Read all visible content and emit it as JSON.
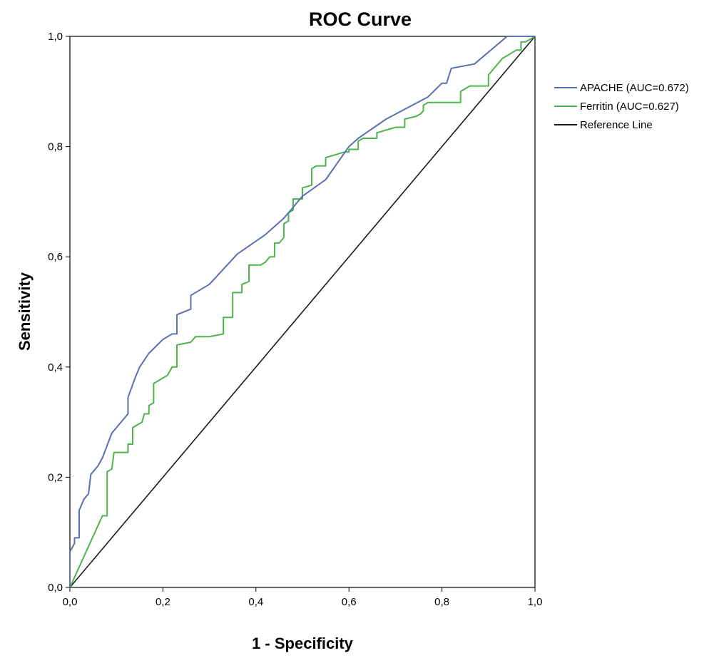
{
  "chart_data": {
    "type": "line",
    "title": "ROC Curve",
    "xlabel": "1 - Specificity",
    "ylabel": "Sensitivity",
    "xlim": [
      0,
      1
    ],
    "ylim": [
      0,
      1
    ],
    "xticks": [
      0,
      0.2,
      0.4,
      0.6,
      0.8,
      1.0
    ],
    "yticks": [
      0,
      0.2,
      0.4,
      0.6,
      0.8,
      1.0
    ],
    "xtick_labels": [
      "0,0",
      "0,2",
      "0,4",
      "0,6",
      "0,8",
      "1,0"
    ],
    "ytick_labels": [
      "0,0",
      "0,2",
      "0,4",
      "0,6",
      "0,8",
      "1,0"
    ],
    "grid": false,
    "legend_position": "right",
    "series": [
      {
        "name": "APACHE (AUC=0.672)",
        "color": "#5a6fb5",
        "points": [
          [
            0.0,
            0.0
          ],
          [
            0.0,
            0.065
          ],
          [
            0.01,
            0.08
          ],
          [
            0.01,
            0.09
          ],
          [
            0.02,
            0.09
          ],
          [
            0.02,
            0.14
          ],
          [
            0.03,
            0.16
          ],
          [
            0.04,
            0.17
          ],
          [
            0.045,
            0.205
          ],
          [
            0.06,
            0.22
          ],
          [
            0.07,
            0.235
          ],
          [
            0.09,
            0.28
          ],
          [
            0.11,
            0.3
          ],
          [
            0.125,
            0.315
          ],
          [
            0.125,
            0.345
          ],
          [
            0.14,
            0.38
          ],
          [
            0.15,
            0.4
          ],
          [
            0.17,
            0.425
          ],
          [
            0.2,
            0.45
          ],
          [
            0.22,
            0.46
          ],
          [
            0.23,
            0.46
          ],
          [
            0.23,
            0.495
          ],
          [
            0.26,
            0.505
          ],
          [
            0.26,
            0.53
          ],
          [
            0.3,
            0.55
          ],
          [
            0.36,
            0.605
          ],
          [
            0.42,
            0.64
          ],
          [
            0.46,
            0.67
          ],
          [
            0.5,
            0.71
          ],
          [
            0.55,
            0.74
          ],
          [
            0.6,
            0.8
          ],
          [
            0.62,
            0.815
          ],
          [
            0.68,
            0.85
          ],
          [
            0.77,
            0.89
          ],
          [
            0.8,
            0.915
          ],
          [
            0.81,
            0.915
          ],
          [
            0.82,
            0.942
          ],
          [
            0.87,
            0.95
          ],
          [
            0.94,
            1.0
          ],
          [
            1.0,
            1.0
          ]
        ]
      },
      {
        "name": "Ferritin (AUC=0.627)",
        "color": "#4cb44c",
        "points": [
          [
            0.0,
            0.0
          ],
          [
            0.07,
            0.13
          ],
          [
            0.08,
            0.13
          ],
          [
            0.08,
            0.21
          ],
          [
            0.09,
            0.215
          ],
          [
            0.095,
            0.245
          ],
          [
            0.125,
            0.245
          ],
          [
            0.125,
            0.26
          ],
          [
            0.135,
            0.26
          ],
          [
            0.135,
            0.29
          ],
          [
            0.145,
            0.295
          ],
          [
            0.155,
            0.3
          ],
          [
            0.16,
            0.315
          ],
          [
            0.17,
            0.315
          ],
          [
            0.17,
            0.33
          ],
          [
            0.18,
            0.335
          ],
          [
            0.18,
            0.37
          ],
          [
            0.19,
            0.375
          ],
          [
            0.2,
            0.38
          ],
          [
            0.21,
            0.385
          ],
          [
            0.22,
            0.4
          ],
          [
            0.23,
            0.4
          ],
          [
            0.23,
            0.44
          ],
          [
            0.26,
            0.445
          ],
          [
            0.27,
            0.455
          ],
          [
            0.3,
            0.455
          ],
          [
            0.33,
            0.46
          ],
          [
            0.33,
            0.49
          ],
          [
            0.35,
            0.49
          ],
          [
            0.35,
            0.535
          ],
          [
            0.37,
            0.535
          ],
          [
            0.37,
            0.55
          ],
          [
            0.385,
            0.555
          ],
          [
            0.385,
            0.585
          ],
          [
            0.41,
            0.585
          ],
          [
            0.42,
            0.59
          ],
          [
            0.43,
            0.6
          ],
          [
            0.44,
            0.6
          ],
          [
            0.44,
            0.625
          ],
          [
            0.45,
            0.625
          ],
          [
            0.46,
            0.635
          ],
          [
            0.46,
            0.66
          ],
          [
            0.47,
            0.665
          ],
          [
            0.47,
            0.68
          ],
          [
            0.48,
            0.685
          ],
          [
            0.48,
            0.705
          ],
          [
            0.5,
            0.705
          ],
          [
            0.5,
            0.725
          ],
          [
            0.52,
            0.73
          ],
          [
            0.52,
            0.76
          ],
          [
            0.53,
            0.765
          ],
          [
            0.55,
            0.765
          ],
          [
            0.55,
            0.78
          ],
          [
            0.57,
            0.785
          ],
          [
            0.59,
            0.79
          ],
          [
            0.6,
            0.79
          ],
          [
            0.6,
            0.795
          ],
          [
            0.62,
            0.795
          ],
          [
            0.62,
            0.81
          ],
          [
            0.63,
            0.815
          ],
          [
            0.66,
            0.815
          ],
          [
            0.66,
            0.825
          ],
          [
            0.68,
            0.83
          ],
          [
            0.7,
            0.835
          ],
          [
            0.72,
            0.835
          ],
          [
            0.72,
            0.85
          ],
          [
            0.745,
            0.855
          ],
          [
            0.755,
            0.86
          ],
          [
            0.76,
            0.865
          ],
          [
            0.76,
            0.875
          ],
          [
            0.77,
            0.88
          ],
          [
            0.84,
            0.88
          ],
          [
            0.84,
            0.9
          ],
          [
            0.85,
            0.905
          ],
          [
            0.86,
            0.91
          ],
          [
            0.9,
            0.91
          ],
          [
            0.9,
            0.93
          ],
          [
            0.92,
            0.95
          ],
          [
            0.93,
            0.96
          ],
          [
            0.94,
            0.965
          ],
          [
            0.95,
            0.97
          ],
          [
            0.96,
            0.975
          ],
          [
            0.97,
            0.975
          ],
          [
            0.97,
            0.99
          ],
          [
            0.98,
            0.99
          ],
          [
            1.0,
            1.0
          ]
        ]
      },
      {
        "name": "Reference Line",
        "color": "#1a1a1a",
        "points": [
          [
            0.0,
            0.0
          ],
          [
            1.0,
            1.0
          ]
        ]
      }
    ]
  }
}
